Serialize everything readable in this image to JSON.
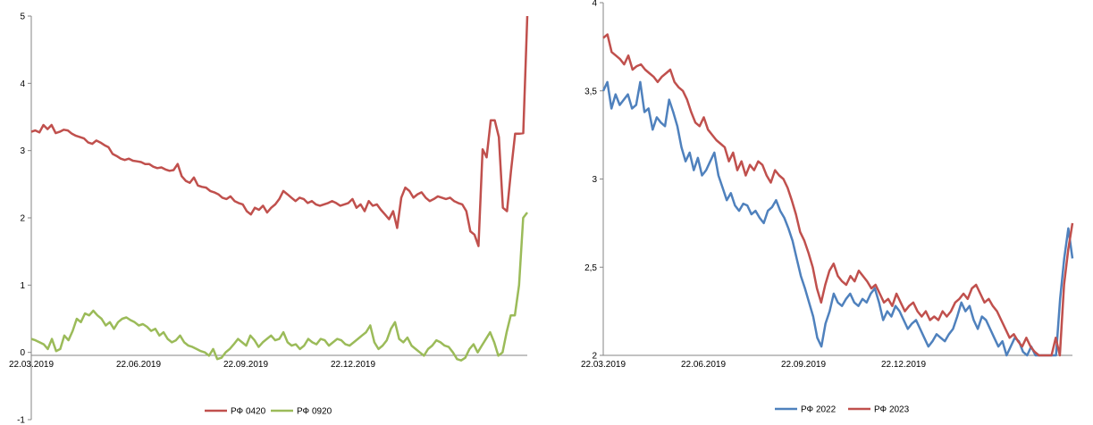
{
  "chart_data": [
    {
      "type": "line",
      "title": "",
      "xlabel": "",
      "ylabel": "",
      "ylim": [
        -1,
        5
      ],
      "yticks": [
        "-1",
        "0",
        "1",
        "2",
        "3",
        "4",
        "5"
      ],
      "xticks": [
        "22.03.2019",
        "22.06.2019",
        "22.09.2019",
        "22.12.2019"
      ],
      "legend_position": "bottom",
      "grid": false,
      "series": [
        {
          "name": "РФ 0420",
          "color": "#C0504D",
          "values": [
            3.28,
            3.3,
            3.27,
            3.38,
            3.32,
            3.38,
            3.26,
            3.28,
            3.31,
            3.3,
            3.25,
            3.22,
            3.2,
            3.18,
            3.12,
            3.1,
            3.15,
            3.12,
            3.08,
            3.05,
            2.95,
            2.92,
            2.88,
            2.86,
            2.88,
            2.85,
            2.84,
            2.83,
            2.8,
            2.8,
            2.76,
            2.74,
            2.75,
            2.72,
            2.7,
            2.71,
            2.8,
            2.62,
            2.55,
            2.52,
            2.6,
            2.48,
            2.46,
            2.45,
            2.4,
            2.38,
            2.35,
            2.3,
            2.28,
            2.32,
            2.25,
            2.22,
            2.2,
            2.1,
            2.05,
            2.15,
            2.12,
            2.18,
            2.08,
            2.15,
            2.2,
            2.28,
            2.4,
            2.35,
            2.3,
            2.25,
            2.3,
            2.28,
            2.22,
            2.25,
            2.2,
            2.18,
            2.2,
            2.22,
            2.25,
            2.22,
            2.18,
            2.2,
            2.22,
            2.28,
            2.15,
            2.2,
            2.1,
            2.25,
            2.18,
            2.2,
            2.12,
            2.05,
            1.98,
            2.1,
            1.85,
            2.3,
            2.45,
            2.4,
            2.3,
            2.35,
            2.38,
            2.3,
            2.25,
            2.28,
            2.32,
            2.3,
            2.28,
            2.3,
            2.25,
            2.22,
            2.2,
            2.1,
            1.8,
            1.75,
            1.58,
            3.02,
            2.9,
            3.45,
            3.45,
            3.2,
            2.15,
            2.1,
            2.7,
            3.25,
            3.25,
            3.26,
            5.0
          ]
        },
        {
          "name": "РФ 0920",
          "color": "#9BBB59",
          "values": [
            0.2,
            0.18,
            0.15,
            0.12,
            0.05,
            0.2,
            0.02,
            0.05,
            0.25,
            0.18,
            0.32,
            0.5,
            0.45,
            0.58,
            0.55,
            0.62,
            0.55,
            0.5,
            0.4,
            0.45,
            0.35,
            0.45,
            0.5,
            0.52,
            0.48,
            0.45,
            0.4,
            0.42,
            0.38,
            0.32,
            0.35,
            0.25,
            0.3,
            0.2,
            0.15,
            0.18,
            0.25,
            0.15,
            0.1,
            0.08,
            0.05,
            0.02,
            0.0,
            -0.05,
            0.05,
            -0.1,
            -0.08,
            0.0,
            0.05,
            0.12,
            0.2,
            0.15,
            0.1,
            0.25,
            0.18,
            0.08,
            0.15,
            0.2,
            0.25,
            0.18,
            0.2,
            0.3,
            0.15,
            0.1,
            0.12,
            0.05,
            0.1,
            0.2,
            0.15,
            0.12,
            0.2,
            0.18,
            0.1,
            0.15,
            0.2,
            0.18,
            0.12,
            0.1,
            0.15,
            0.2,
            0.25,
            0.3,
            0.4,
            0.15,
            0.05,
            0.1,
            0.18,
            0.35,
            0.45,
            0.2,
            0.15,
            0.22,
            0.1,
            0.05,
            0.0,
            -0.05,
            0.05,
            0.1,
            0.18,
            0.15,
            0.1,
            0.08,
            0.0,
            -0.1,
            -0.12,
            -0.08,
            0.05,
            0.12,
            0.0,
            0.1,
            0.2,
            0.3,
            0.15,
            -0.05,
            0.0,
            0.3,
            0.55,
            0.55,
            1.0,
            2.0,
            2.08
          ]
        }
      ]
    },
    {
      "type": "line",
      "title": "",
      "xlabel": "",
      "ylabel": "",
      "ylim": [
        2,
        4
      ],
      "yticks": [
        "2",
        "2,5",
        "3",
        "3,5",
        "4"
      ],
      "xticks": [
        "22.03.2019",
        "22.06.2019",
        "22.09.2019",
        "22.12.2019"
      ],
      "legend_position": "bottom",
      "grid": false,
      "series": [
        {
          "name": "РФ 2022",
          "color": "#4F81BD",
          "values": [
            3.5,
            3.55,
            3.4,
            3.48,
            3.42,
            3.45,
            3.48,
            3.4,
            3.42,
            3.55,
            3.38,
            3.4,
            3.28,
            3.35,
            3.32,
            3.3,
            3.45,
            3.38,
            3.3,
            3.18,
            3.1,
            3.15,
            3.05,
            3.12,
            3.02,
            3.05,
            3.1,
            3.15,
            3.02,
            2.95,
            2.88,
            2.92,
            2.85,
            2.82,
            2.86,
            2.85,
            2.8,
            2.82,
            2.78,
            2.75,
            2.82,
            2.84,
            2.88,
            2.82,
            2.78,
            2.72,
            2.65,
            2.55,
            2.45,
            2.38,
            2.3,
            2.22,
            2.1,
            2.05,
            2.18,
            2.25,
            2.35,
            2.3,
            2.28,
            2.32,
            2.35,
            2.3,
            2.28,
            2.32,
            2.3,
            2.35,
            2.38,
            2.3,
            2.2,
            2.25,
            2.22,
            2.28,
            2.25,
            2.2,
            2.15,
            2.18,
            2.2,
            2.15,
            2.1,
            2.05,
            2.08,
            2.12,
            2.1,
            2.08,
            2.12,
            2.15,
            2.22,
            2.3,
            2.25,
            2.28,
            2.2,
            2.15,
            2.22,
            2.2,
            2.15,
            2.1,
            2.05,
            2.08,
            2.0,
            2.05,
            2.1,
            2.08,
            2.02,
            2.0,
            2.05,
            2.0,
            2.0,
            2.0,
            2.0,
            2.0,
            2.0,
            2.32,
            2.55,
            2.72,
            2.55
          ]
        },
        {
          "name": "РФ 2023",
          "color": "#C0504D",
          "values": [
            3.8,
            3.82,
            3.72,
            3.7,
            3.68,
            3.65,
            3.7,
            3.62,
            3.64,
            3.65,
            3.62,
            3.6,
            3.58,
            3.55,
            3.58,
            3.6,
            3.62,
            3.55,
            3.52,
            3.5,
            3.45,
            3.38,
            3.32,
            3.3,
            3.35,
            3.28,
            3.25,
            3.22,
            3.2,
            3.18,
            3.1,
            3.15,
            3.05,
            3.1,
            3.02,
            3.08,
            3.05,
            3.1,
            3.08,
            3.02,
            2.98,
            3.05,
            3.02,
            3.0,
            2.95,
            2.88,
            2.8,
            2.7,
            2.65,
            2.58,
            2.5,
            2.38,
            2.3,
            2.4,
            2.48,
            2.52,
            2.45,
            2.42,
            2.4,
            2.45,
            2.42,
            2.48,
            2.45,
            2.42,
            2.38,
            2.4,
            2.35,
            2.3,
            2.32,
            2.28,
            2.35,
            2.3,
            2.25,
            2.28,
            2.3,
            2.25,
            2.22,
            2.25,
            2.2,
            2.22,
            2.2,
            2.25,
            2.22,
            2.25,
            2.3,
            2.32,
            2.35,
            2.32,
            2.38,
            2.4,
            2.35,
            2.3,
            2.32,
            2.28,
            2.25,
            2.2,
            2.15,
            2.1,
            2.12,
            2.08,
            2.05,
            2.1,
            2.05,
            2.02,
            2.0,
            2.0,
            2.0,
            2.0,
            2.1,
            2.0,
            2.4,
            2.6,
            2.75
          ]
        }
      ]
    }
  ]
}
